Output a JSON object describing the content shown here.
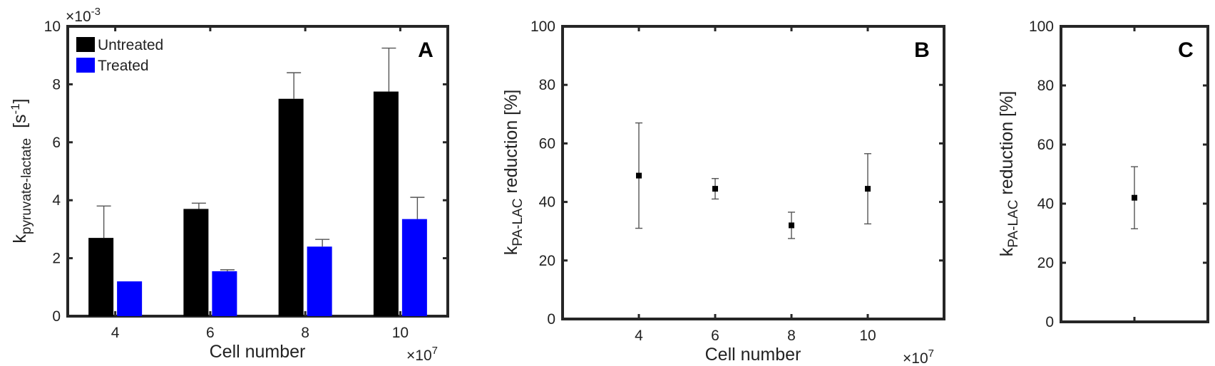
{
  "chart_data": [
    {
      "type": "bar",
      "panel": "A",
      "categories": [
        "4",
        "6",
        "8",
        "10"
      ],
      "xlabel": "Cell number",
      "x_multiplier": "×10",
      "x_multiplier_exp": "7",
      "ylabel_base": "k",
      "ylabel_sub": "pyruvate-lactate",
      "ylabel_unit_pre": "[s",
      "ylabel_unit_sup": "-1",
      "ylabel_unit_post": "]",
      "y_multiplier": "×10",
      "y_multiplier_exp": "-3",
      "ylim": [
        0,
        10
      ],
      "yticks": [
        "0",
        "2",
        "4",
        "6",
        "8",
        "10"
      ],
      "legend_position": "top-left",
      "series": [
        {
          "name": "Untreated",
          "color": "#000000",
          "values": [
            2.7,
            3.7,
            7.5,
            7.75
          ],
          "errors": [
            1.1,
            0.2,
            0.9,
            1.5
          ]
        },
        {
          "name": "Treated",
          "color": "#0000ff",
          "values": [
            1.2,
            1.55,
            2.4,
            3.35
          ],
          "errors": [
            0.0,
            0.05,
            0.25,
            0.75
          ]
        }
      ]
    },
    {
      "type": "scatter",
      "panel": "B",
      "x": [
        4,
        6,
        8,
        10
      ],
      "xticks": [
        "4",
        "6",
        "8",
        "10"
      ],
      "xlabel": "Cell number",
      "x_multiplier": "×10",
      "x_multiplier_exp": "7",
      "y": [
        49,
        44.5,
        32,
        44.5
      ],
      "y_errors": [
        18,
        3.5,
        4.5,
        12
      ],
      "ylabel_base": "k",
      "ylabel_sub": "PA-LAC",
      "ylabel_rest": " reduction [%]",
      "ylim": [
        0,
        100
      ],
      "yticks": [
        "0",
        "20",
        "40",
        "60",
        "80",
        "100"
      ]
    },
    {
      "type": "scatter",
      "panel": "C",
      "y": [
        42
      ],
      "y_errors": [
        10.5
      ],
      "ylabel_base": "k",
      "ylabel_sub": "PA-LAC",
      "ylabel_rest": " reduction [%]",
      "ylim": [
        0,
        100
      ],
      "yticks": [
        "0",
        "20",
        "40",
        "60",
        "80",
        "100"
      ]
    }
  ]
}
